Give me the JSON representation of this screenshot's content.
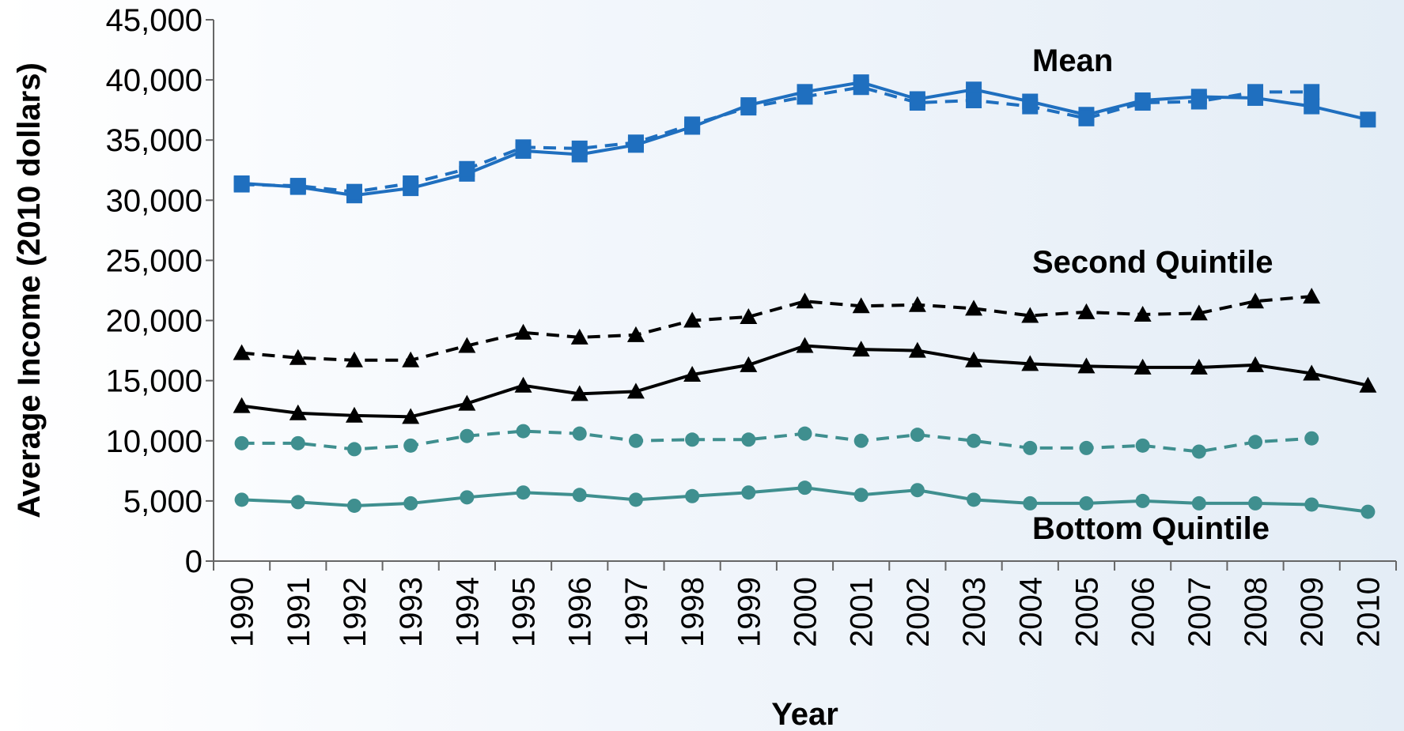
{
  "chart_data": {
    "type": "line",
    "xlabel": "Year",
    "ylabel": "Average Income (2010 dollars)",
    "ylim": [
      0,
      45000
    ],
    "yticks": [
      0,
      5000,
      10000,
      15000,
      20000,
      25000,
      30000,
      35000,
      40000,
      45000
    ],
    "ytick_labels": [
      "0",
      "5,000",
      "10,000",
      "15,000",
      "20,000",
      "25,000",
      "30,000",
      "35,000",
      "40,000",
      "45,000"
    ],
    "x": [
      "1990",
      "1991",
      "1992",
      "1993",
      "1994",
      "1995",
      "1996",
      "1997",
      "1998",
      "1999",
      "2000",
      "2001",
      "2002",
      "2003",
      "2004",
      "2005",
      "2006",
      "2007",
      "2008",
      "2009",
      "2010"
    ],
    "grid": false,
    "legend": "inline labels",
    "annotations": [
      {
        "id": "mean",
        "text": "Mean"
      },
      {
        "id": "second",
        "text": "Second Quintile"
      },
      {
        "id": "bottom",
        "text": "Bottom Quintile"
      }
    ],
    "series": [
      {
        "id": "mean_solid",
        "color": "#1f6fbf",
        "line": "solid",
        "marker": "square",
        "values": [
          31400,
          31100,
          30400,
          31000,
          32200,
          34100,
          33800,
          34600,
          36100,
          37900,
          39000,
          39800,
          38400,
          39200,
          38200,
          37100,
          38300,
          38600,
          38500,
          37800,
          36700
        ]
      },
      {
        "id": "mean_dashed",
        "color": "#1f6fbf",
        "line": "dashed",
        "marker": "square",
        "values": [
          31300,
          31200,
          30700,
          31400,
          32600,
          34400,
          34300,
          34800,
          36300,
          37700,
          38600,
          39400,
          38100,
          38300,
          37800,
          36800,
          38100,
          38200,
          39000,
          39000,
          null
        ]
      },
      {
        "id": "second_solid",
        "color": "#000000",
        "line": "solid",
        "marker": "triangle",
        "values": [
          12900,
          12300,
          12100,
          12000,
          13100,
          14600,
          13900,
          14100,
          15500,
          16300,
          17900,
          17600,
          17500,
          16700,
          16400,
          16200,
          16100,
          16100,
          16300,
          15600,
          14600
        ]
      },
      {
        "id": "second_dashed",
        "color": "#000000",
        "line": "dashed",
        "marker": "triangle",
        "values": [
          17300,
          16900,
          16700,
          16700,
          17900,
          19000,
          18600,
          18800,
          20000,
          20300,
          21600,
          21200,
          21300,
          21000,
          20400,
          20700,
          20500,
          20600,
          21600,
          22000,
          null
        ]
      },
      {
        "id": "bottom_solid",
        "color": "#3f8f8f",
        "line": "solid",
        "marker": "circle",
        "values": [
          5100,
          4900,
          4600,
          4800,
          5300,
          5700,
          5500,
          5100,
          5400,
          5700,
          6100,
          5500,
          5900,
          5100,
          4800,
          4800,
          5000,
          4800,
          4800,
          4700,
          4100
        ]
      },
      {
        "id": "bottom_dashed",
        "color": "#3f8f8f",
        "line": "dashed",
        "marker": "circle",
        "values": [
          9800,
          9800,
          9300,
          9600,
          10400,
          10800,
          10600,
          10000,
          10100,
          10100,
          10600,
          10000,
          10500,
          10000,
          9400,
          9400,
          9600,
          9100,
          9900,
          10200,
          null
        ]
      }
    ]
  }
}
